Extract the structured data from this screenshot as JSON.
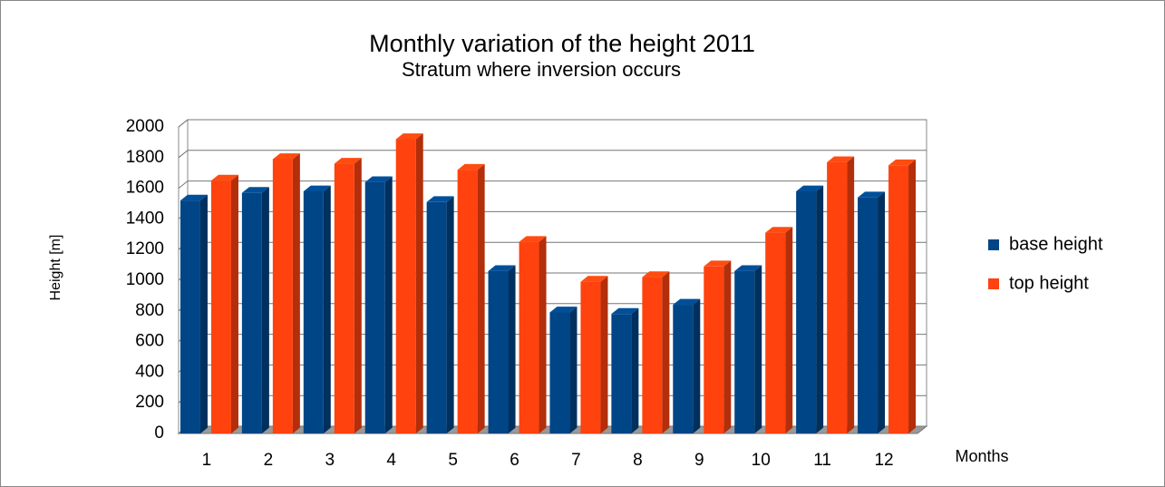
{
  "chart_data": {
    "type": "bar3d",
    "title": "Monthly variation of the height 2011",
    "subtitle": "Stratum where inversion occurs",
    "x_label": "Months",
    "y_label": "Height [m]",
    "categories": [
      "1",
      "2",
      "3",
      "4",
      "5",
      "6",
      "7",
      "8",
      "9",
      "10",
      "11",
      "12"
    ],
    "series": [
      {
        "name": "base height",
        "color": "#004586",
        "values": [
          1520,
          1570,
          1580,
          1640,
          1510,
          1060,
          790,
          780,
          840,
          1060,
          1580,
          1540
        ]
      },
      {
        "name": "top height",
        "color": "#ff420e",
        "values": [
          1650,
          1790,
          1760,
          1920,
          1720,
          1250,
          990,
          1020,
          1090,
          1310,
          1770,
          1750
        ]
      }
    ],
    "ylim": [
      0,
      2000
    ],
    "yticks": [
      0,
      200,
      400,
      600,
      800,
      1000,
      1200,
      1400,
      1600,
      1800,
      2000
    ],
    "grid": true,
    "legend": "right"
  }
}
